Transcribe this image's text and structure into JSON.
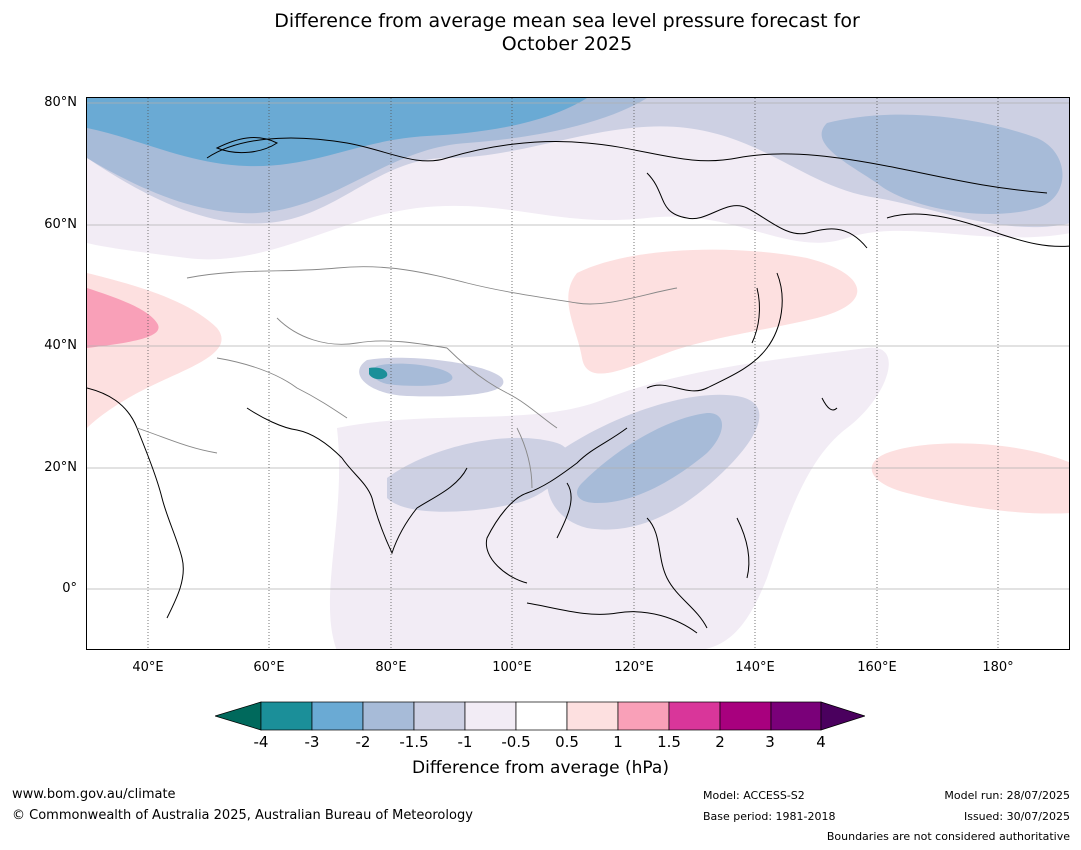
{
  "title_line1": "Difference from average mean sea level pressure forecast for",
  "title_line2": "October 2025",
  "lat_labels": [
    "80°N",
    "60°N",
    "40°N",
    "20°N",
    "0°"
  ],
  "lon_labels": [
    "40°E",
    "60°E",
    "80°E",
    "100°E",
    "120°E",
    "140°E",
    "160°E",
    "180°"
  ],
  "colorbar": {
    "ticks": [
      "-4",
      "-3",
      "-2",
      "-1.5",
      "-1",
      "-0.5",
      "0.5",
      "1",
      "1.5",
      "2",
      "3",
      "4"
    ],
    "colors": {
      "below_min": "#00695c",
      "c1": "#1b8f99",
      "c2": "#6aaad4",
      "c3": "#a7bbd8",
      "c4": "#cdd0e3",
      "c5": "#f2ecf5",
      "c6": "#ffffff",
      "c7": "#fde0e0",
      "c8": "#f9a0b8",
      "c9": "#d9369a",
      "c10": "#a8007e",
      "c11": "#7a0079",
      "above_max": "#4a005e"
    },
    "label": "Difference from average (hPa)"
  },
  "footer": {
    "url": "www.bom.gov.au/climate",
    "copyright": "© Commonwealth of Australia 2025, Australian Bureau of Meteorology",
    "model": "Model: ACCESS-S2",
    "base_period": "Base period: 1981-2018",
    "model_run": "Model run: 28/07/2025",
    "issued": "Issued: 30/07/2025",
    "disclaimer": "Boundaries are not considered authoritative"
  }
}
